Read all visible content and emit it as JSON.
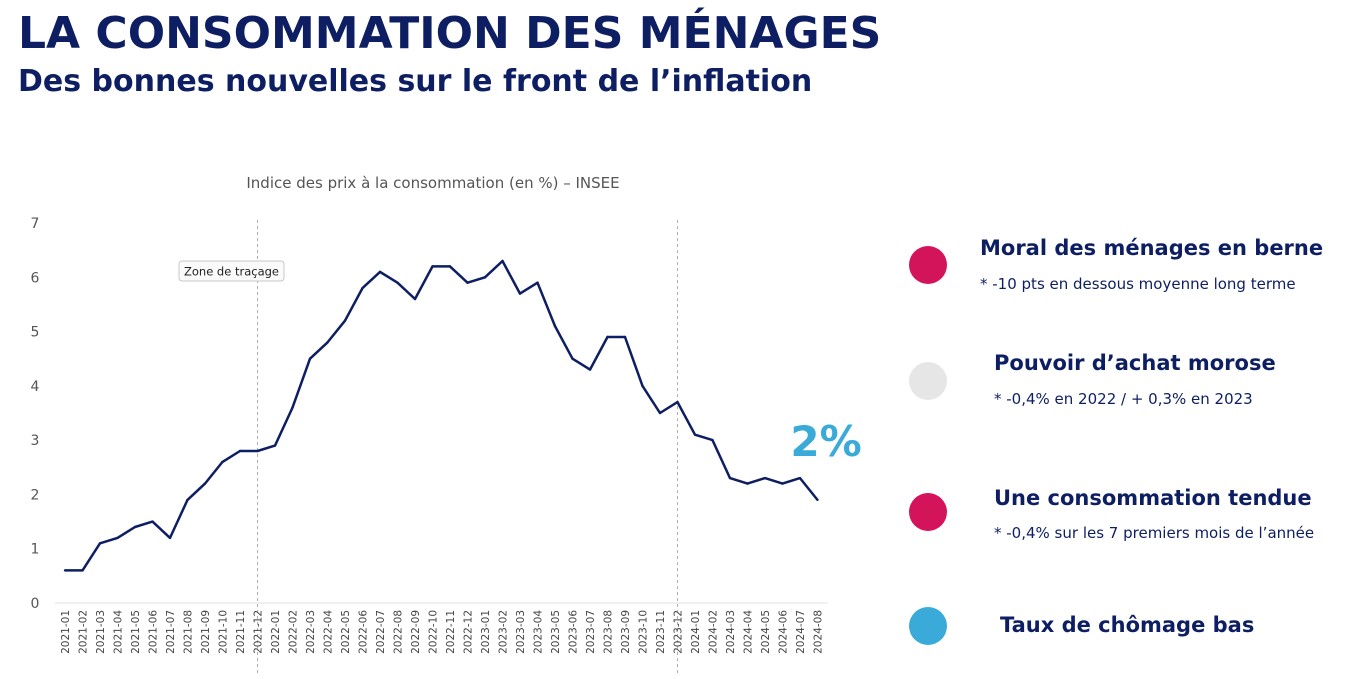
{
  "header": {
    "title": "LA CONSOMMATION DES MÉNAGES",
    "subtitle": "Des bonnes nouvelles sur le front de l’inflation"
  },
  "chart_data": {
    "type": "line",
    "title": "Indice des prix à la consommation (en %) – INSEE",
    "xlabel": "",
    "ylabel": "",
    "ylim": [
      0,
      7
    ],
    "yticks": [
      0,
      1,
      2,
      3,
      4,
      5,
      6,
      7
    ],
    "grid": false,
    "categories": [
      "2021-01",
      "2021-02",
      "2021-03",
      "2021-04",
      "2021-05",
      "2021-06",
      "2021-07",
      "2021-08",
      "2021-09",
      "2021-10",
      "2021-11",
      "2021-12",
      "2022-01",
      "2022-02",
      "2022-03",
      "2022-04",
      "2022-05",
      "2022-06",
      "2022-07",
      "2022-08",
      "2022-09",
      "2022-10",
      "2022-11",
      "2022-12",
      "2023-01",
      "2023-02",
      "2023-03",
      "2023-04",
      "2023-05",
      "2023-06",
      "2023-07",
      "2023-08",
      "2023-09",
      "2023-10",
      "2023-11",
      "2023-12",
      "2024-01",
      "2024-02",
      "2024-03",
      "2024-04",
      "2024-05",
      "2024-06",
      "2024-07",
      "2024-08"
    ],
    "series": [
      {
        "values": [
          0.6,
          0.6,
          1.1,
          1.2,
          1.4,
          1.5,
          1.2,
          1.9,
          2.2,
          2.6,
          2.8,
          2.8,
          2.9,
          3.6,
          4.5,
          4.8,
          5.2,
          5.8,
          6.1,
          5.9,
          5.6,
          6.2,
          6.2,
          5.9,
          6.0,
          6.3,
          5.7,
          5.9,
          5.1,
          4.5,
          4.3,
          4.9,
          4.9,
          4.0,
          3.5,
          3.7,
          3.1,
          3.0,
          2.3,
          2.2,
          2.3,
          2.2,
          2.3,
          1.9
        ],
        "color": "#0e1e63"
      }
    ],
    "vertical_markers": [
      "2021-12",
      "2023-12"
    ],
    "annotation": "2%",
    "annotation_color": "#3aaad9",
    "tooltip": "Zone de traçage"
  },
  "side_items": [
    {
      "title": "Moral des ménages en berne",
      "note": "* -10 pts en dessous moyenne long terme",
      "color": "#d4145a"
    },
    {
      "title": "Pouvoir d’achat morose",
      "note": "* -0,4% en 2022 / + 0,3% en 2023",
      "color": "#e6e6e6"
    },
    {
      "title": "Une consommation tendue",
      "note": "* -0,4% sur les 7 premiers mois de l’année",
      "color": "#d4145a"
    },
    {
      "title": "Taux de chômage bas",
      "note": "",
      "color": "#3aaad9"
    }
  ]
}
